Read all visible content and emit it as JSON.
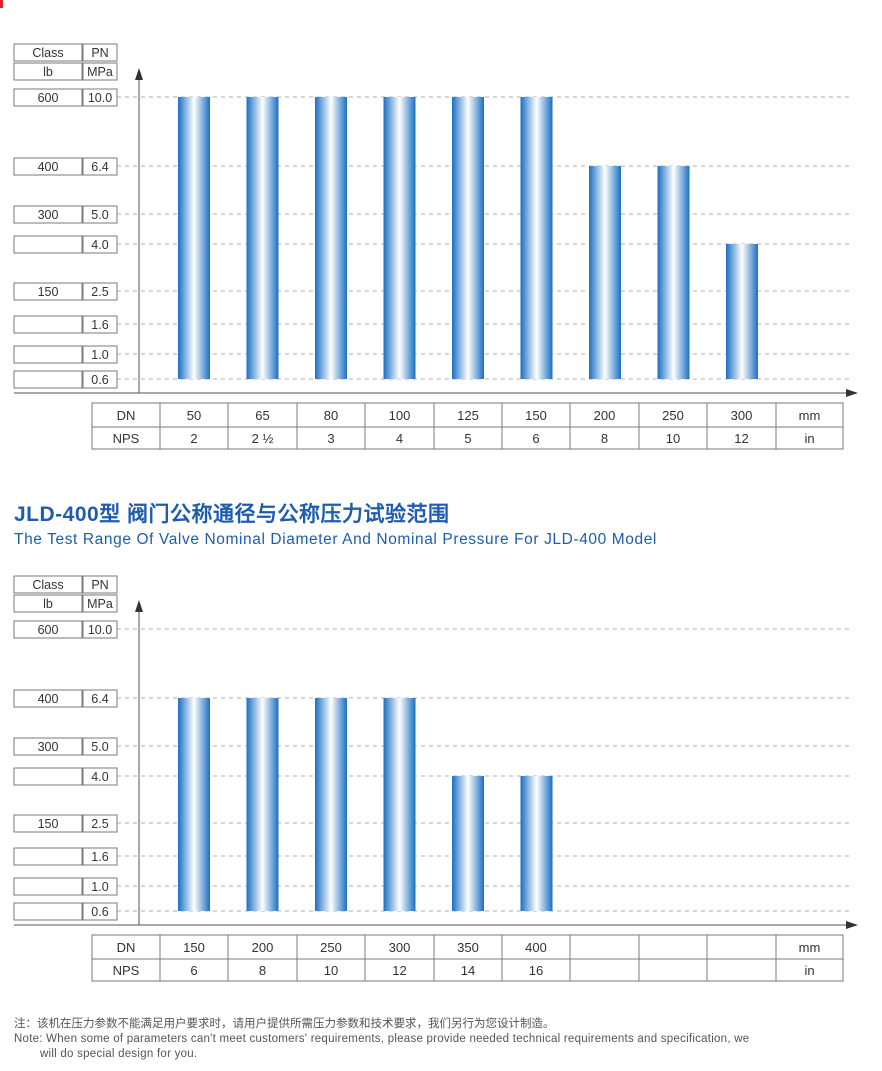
{
  "title_cn": "JLD-400型 阀门公称通径与公称压力试验范围",
  "title_en": "The Test Range Of Valve Nominal Diameter And Nominal Pressure For JLD-400 Model",
  "note_cn": "注：该机在压力参数不能满足用户要求时，请用户提供所需压力参数和技术要求，我们另行为您设计制造。",
  "note_en_line1": "Note: When some of parameters can't meet customers' requirements, please provide needed technical requirements and specification, we",
  "note_en_line2": "will do special design for you.",
  "colors": {
    "bar_edge": "#1a6fc4",
    "bar_center": "#ffffff",
    "title": "#1f5cb0",
    "grid": "#999999"
  },
  "chart_data": [
    {
      "type": "bar",
      "header_class": "Class",
      "header_pn": "PN",
      "header_lb": "lb",
      "header_mpa": "MPa",
      "levels": [
        {
          "class": "600",
          "pn": "10.0",
          "value": 10.0
        },
        {
          "class": "400",
          "pn": "6.4",
          "value": 6.4
        },
        {
          "class": "300",
          "pn": "5.0",
          "value": 5.0
        },
        {
          "class": "",
          "pn": "4.0",
          "value": 4.0
        },
        {
          "class": "150",
          "pn": "2.5",
          "value": 2.5
        },
        {
          "class": "",
          "pn": "1.6",
          "value": 1.6
        },
        {
          "class": "",
          "pn": "1.0",
          "value": 1.0
        },
        {
          "class": "",
          "pn": "0.6",
          "value": 0.6
        }
      ],
      "dn_label": "DN",
      "nps_label": "NPS",
      "dn_unit": "mm",
      "nps_unit": "in",
      "dn": [
        "50",
        "65",
        "80",
        "100",
        "125",
        "150",
        "200",
        "250",
        "300"
      ],
      "nps": [
        "2",
        "2 ½",
        "3",
        "4",
        "5",
        "6",
        "8",
        "10",
        "12"
      ],
      "values": [
        10.0,
        10.0,
        10.0,
        10.0,
        10.0,
        10.0,
        6.4,
        6.4,
        4.0
      ],
      "min_value": 0.6
    },
    {
      "type": "bar",
      "header_class": "Class",
      "header_pn": "PN",
      "header_lb": "lb",
      "header_mpa": "MPa",
      "levels": [
        {
          "class": "600",
          "pn": "10.0",
          "value": 10.0
        },
        {
          "class": "400",
          "pn": "6.4",
          "value": 6.4
        },
        {
          "class": "300",
          "pn": "5.0",
          "value": 5.0
        },
        {
          "class": "",
          "pn": "4.0",
          "value": 4.0
        },
        {
          "class": "150",
          "pn": "2.5",
          "value": 2.5
        },
        {
          "class": "",
          "pn": "1.6",
          "value": 1.6
        },
        {
          "class": "",
          "pn": "1.0",
          "value": 1.0
        },
        {
          "class": "",
          "pn": "0.6",
          "value": 0.6
        }
      ],
      "dn_label": "DN",
      "nps_label": "NPS",
      "dn_unit": "mm",
      "nps_unit": "in",
      "dn": [
        "150",
        "200",
        "250",
        "300",
        "350",
        "400",
        "",
        "",
        ""
      ],
      "nps": [
        "6",
        "8",
        "10",
        "12",
        "14",
        "16",
        "",
        "",
        ""
      ],
      "values": [
        6.4,
        6.4,
        6.4,
        6.4,
        4.0,
        4.0
      ],
      "min_value": 0.6
    }
  ]
}
